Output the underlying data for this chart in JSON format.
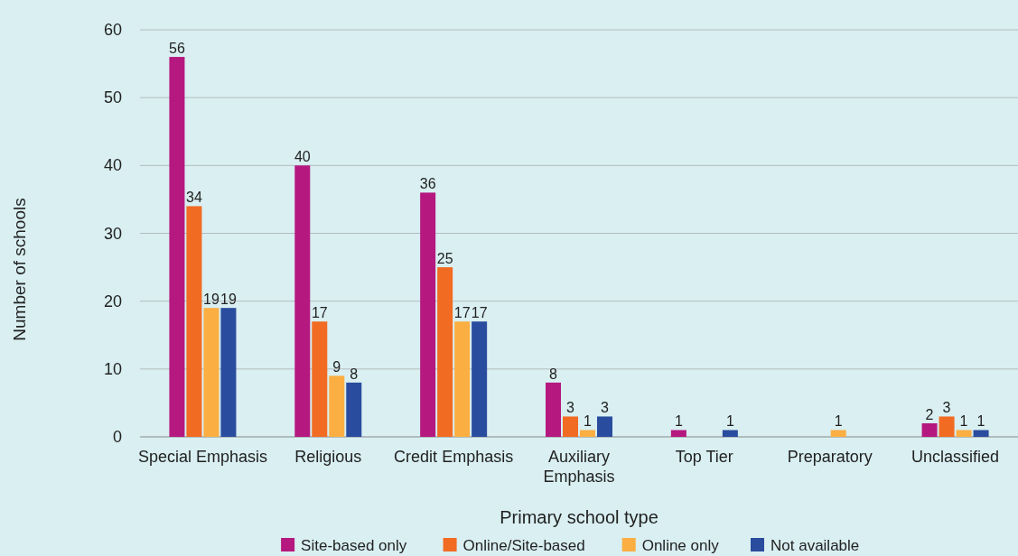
{
  "chart_data": {
    "type": "bar",
    "xlabel": "Primary school type",
    "ylabel": "Number of schools",
    "categories": [
      "Special Emphasis",
      "Religious",
      "Credit Emphasis",
      "Auxiliary Emphasis",
      "Top Tier",
      "Preparatory",
      "Unclassified"
    ],
    "series": [
      {
        "name": "Site-based only",
        "color": "#b5187f",
        "values": [
          56,
          40,
          36,
          8,
          1,
          null,
          2
        ]
      },
      {
        "name": "Online/Site-based",
        "color": "#f26b23",
        "values": [
          34,
          17,
          25,
          3,
          null,
          null,
          3
        ]
      },
      {
        "name": "Online only",
        "color": "#fbae42",
        "values": [
          19,
          9,
          17,
          1,
          null,
          1,
          1
        ]
      },
      {
        "name": "Not available",
        "color": "#2a4c9e",
        "values": [
          19,
          8,
          17,
          3,
          1,
          null,
          1
        ]
      }
    ],
    "ylim": [
      0,
      60
    ],
    "yticks": [
      0,
      10,
      20,
      30,
      40,
      50,
      60
    ],
    "grid": "y",
    "legend": "bottom",
    "data_labels": true
  }
}
